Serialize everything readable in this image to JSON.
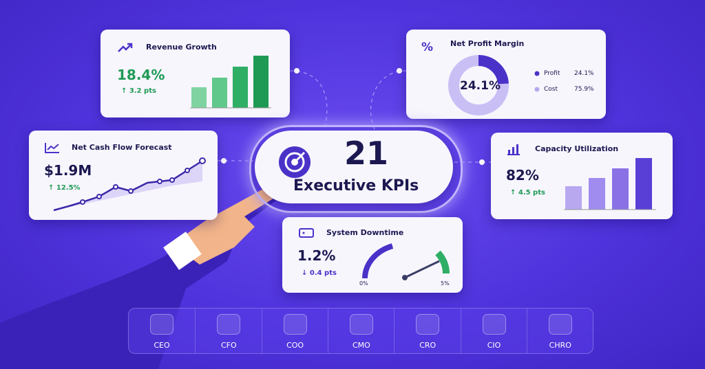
{
  "center": {
    "number": "21",
    "label": "Executive KPIs"
  },
  "revenue_growth": {
    "title": "Revenue Growth",
    "value": "18.4%",
    "change": "↑ 3.2 pts"
  },
  "net_profit_margin": {
    "title": "Net Profit Margin",
    "center": "24.1%",
    "legend": [
      {
        "name": "Profit",
        "value": "24.1%"
      },
      {
        "name": "Cost",
        "value": "75.9%"
      }
    ]
  },
  "net_cash_flow": {
    "title": "Net Cash Flow Forecast",
    "value": "$1.9M",
    "change": "↑ 12.5%"
  },
  "capacity_utilization": {
    "title": "Capacity Utilization",
    "value": "82%",
    "change": "↑ 4.5 pts"
  },
  "system_downtime": {
    "title": "System Downtime",
    "value": "1.2%",
    "change": "↓ 0.4 pts",
    "gauge_min": "0%",
    "gauge_max": "5%"
  },
  "roles": [
    "CEO",
    "CFO",
    "COO",
    "CMO",
    "CRO",
    "CIO",
    "CHRO"
  ]
}
